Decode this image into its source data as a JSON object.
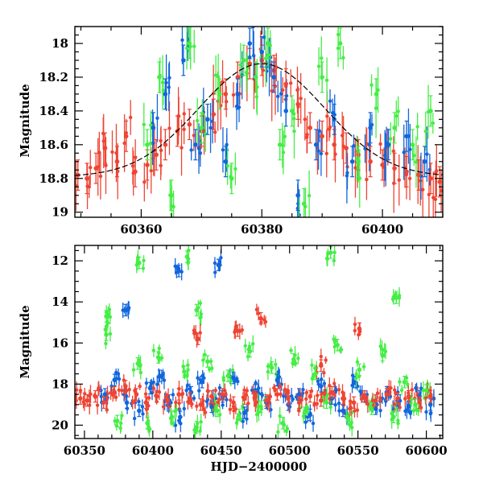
{
  "chart_data": [
    {
      "type": "scatter",
      "xlabel": "",
      "ylabel": "Magnitude",
      "xlim": [
        60349,
        60410
      ],
      "ylim": [
        19.03,
        17.9
      ],
      "y_inverted": true,
      "xticks": [
        60360,
        60380,
        60400
      ],
      "yticks": [
        18,
        18.2,
        18.4,
        18.6,
        18.8,
        19
      ],
      "series": [
        {
          "color": "#ee4433",
          "x": [
            60349.5,
            60351,
            60352.5,
            60354,
            60356,
            60357.5,
            60359,
            60361,
            60362.5,
            60364,
            60366,
            60368,
            60370,
            60372,
            60374,
            60376,
            60378,
            60380,
            60382,
            60384,
            60386,
            60388,
            60390,
            60392,
            60394,
            60396,
            60398,
            60400,
            60402,
            60404,
            60406,
            60408,
            60409.5
          ],
          "y": [
            18.78,
            18.8,
            18.74,
            18.62,
            18.7,
            18.55,
            18.76,
            18.72,
            18.66,
            18.6,
            18.52,
            18.48,
            18.52,
            18.42,
            18.3,
            18.2,
            18.12,
            18.1,
            18.16,
            18.24,
            18.36,
            18.5,
            18.55,
            18.6,
            18.62,
            18.66,
            18.7,
            18.72,
            18.74,
            18.76,
            18.78,
            18.8,
            18.82
          ]
        },
        {
          "color": "#1166dd",
          "x": [
            60362,
            60364,
            60367,
            60369,
            60371,
            60374,
            60376,
            60378,
            60380,
            60382,
            60384,
            60386,
            60389,
            60392,
            60395,
            60398,
            60401,
            60404,
            60407
          ],
          "y": [
            18.5,
            18.3,
            18.1,
            18.6,
            18.45,
            18.7,
            18.3,
            18.0,
            18.05,
            18.2,
            18.4,
            18.9,
            18.6,
            18.45,
            18.7,
            18.5,
            18.6,
            18.55,
            18.7
          ]
        },
        {
          "color": "#44ee44",
          "x": [
            60361,
            60363,
            60365,
            60368,
            60370,
            60373,
            60375,
            60377,
            60379,
            60381,
            60383,
            60385,
            60387,
            60390,
            60393,
            60396,
            60399,
            60402,
            60405,
            60408
          ],
          "y": [
            18.6,
            18.2,
            18.9,
            18.0,
            18.5,
            18.3,
            18.8,
            18.1,
            18.2,
            18.0,
            18.6,
            18.4,
            18.95,
            18.2,
            18.0,
            18.7,
            18.3,
            18.5,
            18.6,
            18.4
          ]
        }
      ],
      "model_curve": {
        "type": "gaussian",
        "peak_x": 60380,
        "peak_y": 18.12,
        "base_y": 18.79,
        "sigma": 7
      }
    },
    {
      "type": "scatter",
      "xlabel": "HJD−2400000",
      "ylabel": "Magnitude",
      "xlim": [
        60343,
        60612
      ],
      "ylim": [
        20.65,
        11.25
      ],
      "y_inverted": true,
      "xticks": [
        60350,
        60400,
        60450,
        60500,
        60550,
        60600
      ],
      "yticks": [
        12,
        14,
        16,
        18,
        20
      ],
      "series": [
        {
          "color": "#1166dd",
          "x": [
            60365,
            60372,
            60381,
            60390,
            60398,
            60405,
            60412,
            60420,
            60428,
            60436,
            60443,
            60451,
            60459,
            60467,
            60475,
            60483,
            60491,
            60499,
            60507,
            60515,
            60523,
            60531,
            60539,
            60547,
            60555,
            60563,
            60571,
            60579,
            60587,
            60595,
            60603,
            60380,
            60419,
            60448
          ],
          "y": [
            18.5,
            17.8,
            18.9,
            19.3,
            18.2,
            17.6,
            18.8,
            19.6,
            18.4,
            17.9,
            19.1,
            18.6,
            17.7,
            19.4,
            18.3,
            18.9,
            17.8,
            19.0,
            18.5,
            19.5,
            18.1,
            18.7,
            19.3,
            17.9,
            18.6,
            19.2,
            18.4,
            18.8,
            19.1,
            18.6,
            19.0,
            14.4,
            12.5,
            12.2
          ]
        },
        {
          "color": "#44ee44",
          "x": [
            60366,
            60374,
            60389,
            60396,
            60404,
            60414,
            60423,
            60432,
            60440,
            60447,
            60455,
            60463,
            60471,
            60479,
            60487,
            60495,
            60503,
            60511,
            60519,
            60527,
            60535,
            60543,
            60551,
            60560,
            60568,
            60576,
            60584,
            60592,
            60600,
            60390,
            60425,
            60530,
            60578,
            60432,
            60366
          ],
          "y": [
            15.6,
            19.8,
            17.0,
            19.9,
            16.7,
            19.6,
            17.4,
            20.1,
            16.9,
            19.3,
            17.6,
            19.5,
            16.4,
            19.1,
            17.2,
            19.9,
            16.8,
            19.4,
            17.5,
            18.9,
            16.1,
            19.7,
            17.3,
            19.2,
            16.6,
            19.6,
            17.9,
            19.0,
            18.3,
            12.1,
            11.8,
            11.6,
            13.8,
            14.4,
            14.7
          ]
        },
        {
          "color": "#ee4433",
          "x": [
            60347,
            60352,
            60358,
            60364,
            60372,
            60380,
            60388,
            60395,
            60403,
            60411,
            60419,
            60427,
            60435,
            60443,
            60451,
            60459,
            60467,
            60475,
            60483,
            60491,
            60499,
            60507,
            60515,
            60523,
            60531,
            60539,
            60547,
            60555,
            60563,
            60571,
            60579,
            60587,
            60595,
            60603,
            60433,
            60462,
            60479,
            60551,
            60523
          ],
          "y": [
            18.7,
            18.8,
            18.6,
            18.9,
            18.4,
            18.1,
            18.5,
            18.9,
            18.6,
            18.8,
            18.5,
            18.7,
            19.0,
            18.6,
            18.5,
            18.9,
            18.7,
            18.6,
            18.8,
            18.5,
            18.7,
            18.9,
            18.6,
            18.8,
            18.4,
            18.7,
            18.9,
            18.6,
            18.8,
            18.5,
            18.7,
            18.6,
            18.9,
            18.6,
            15.8,
            15.4,
            14.8,
            15.3,
            17.1
          ]
        }
      ]
    }
  ]
}
